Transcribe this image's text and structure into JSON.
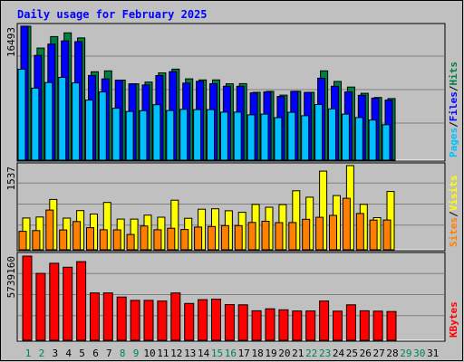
{
  "chart_data": [
    {
      "type": "bar",
      "panel": "hits-files-pages",
      "title": "Daily usage for February 2025",
      "ylabel_parts": [
        "Pages",
        "Files",
        "Hits"
      ],
      "ymax_label": "16493",
      "ylim": [
        0,
        16493
      ],
      "categories": [
        "1",
        "2",
        "3",
        "4",
        "5",
        "6",
        "7",
        "8",
        "9",
        "10",
        "11",
        "12",
        "13",
        "14",
        "15",
        "16",
        "17",
        "18",
        "19",
        "20",
        "21",
        "22",
        "23",
        "24",
        "25",
        "26",
        "27",
        "28"
      ],
      "series": [
        {
          "name": "Hits",
          "values": [
            16493,
            13805,
            15220,
            15685,
            15060,
            10888,
            11002,
            9860,
            9400,
            9620,
            10755,
            11215,
            10017,
            9880,
            9880,
            9405,
            9425,
            8355,
            8470,
            8010,
            8485,
            8355,
            11002,
            9700,
            9005,
            8240,
            7725,
            7590
          ]
        },
        {
          "name": "Files",
          "values": [
            16500,
            12900,
            14300,
            14690,
            14600,
            10430,
            10012,
            9860,
            9400,
            9260,
            10420,
            10912,
            9500,
            9722,
            9420,
            9100,
            9100,
            8290,
            8400,
            7850,
            8480,
            8350,
            10100,
            9110,
            8400,
            7990,
            7640,
            7402
          ]
        },
        {
          "name": "Pages",
          "values": [
            11200,
            8870,
            9560,
            10200,
            9520,
            7400,
            8400,
            6400,
            5995,
            6100,
            6835,
            6122,
            6260,
            6230,
            6230,
            5920,
            5920,
            5580,
            5670,
            5240,
            5900,
            5470,
            6850,
            6320,
            5670,
            5250,
            4950,
            4370
          ]
        }
      ],
      "colors": {
        "Hits": "#008040",
        "Files": "#0000ff",
        "Pages": "#00c0ff"
      }
    },
    {
      "type": "bar",
      "panel": "visits-sites",
      "ylabel_parts": [
        "Sites",
        "Visits"
      ],
      "ymax_label": "1537",
      "ylim": [
        0,
        1537
      ],
      "categories": [
        "1",
        "2",
        "3",
        "4",
        "5",
        "6",
        "7",
        "8",
        "9",
        "10",
        "11",
        "12",
        "13",
        "14",
        "15",
        "16",
        "17",
        "18",
        "19",
        "20",
        "21",
        "22",
        "23",
        "24",
        "25",
        "26",
        "27",
        "28"
      ],
      "series": [
        {
          "name": "Visits",
          "values": [
            580,
            598,
            919,
            579,
            716,
            652,
            865,
            560,
            560,
            633,
            595,
            905,
            575,
            740,
            748,
            713,
            684,
            828,
            777,
            824,
            1077,
            960,
            1437,
            990,
            1537,
            829,
            587,
            1065
          ]
        },
        {
          "name": "Sites",
          "values": [
            337,
            350,
            725,
            362,
            516,
            404,
            366,
            363,
            279,
            434,
            366,
            394,
            371,
            415,
            425,
            441,
            441,
            499,
            520,
            496,
            498,
            557,
            594,
            628,
            940,
            663,
            542,
            543
          ]
        }
      ],
      "colors": {
        "Visits": "#ffff00",
        "Sites": "#ff8000"
      }
    },
    {
      "type": "bar",
      "panel": "kbytes",
      "ylabel_parts": [
        "KBytes"
      ],
      "ymax_label": "5739160",
      "ylim": [
        0,
        5739160
      ],
      "categories": [
        "1",
        "2",
        "3",
        "4",
        "5",
        "6",
        "7",
        "8",
        "9",
        "10",
        "11",
        "12",
        "13",
        "14",
        "15",
        "16",
        "17",
        "18",
        "19",
        "20",
        "21",
        "22",
        "23",
        "24",
        "25",
        "26",
        "27",
        "28"
      ],
      "series": [
        {
          "name": "KBytes",
          "values": [
            5739160,
            4560000,
            5250000,
            4980000,
            5360000,
            3230000,
            3230000,
            2950000,
            2720000,
            2720000,
            2680000,
            3230000,
            2510000,
            2770000,
            2800000,
            2440000,
            2420000,
            2010000,
            2150000,
            2080000,
            2000000,
            2000000,
            2680000,
            1990000,
            2420000,
            2010000,
            1990000,
            1960000
          ]
        }
      ],
      "colors": {
        "KBytes": "#ff0000"
      }
    }
  ],
  "x_axis": {
    "day_labels": [
      "1",
      "2",
      "3",
      "4",
      "5",
      "6",
      "7",
      "8",
      "9",
      "10",
      "11",
      "12",
      "13",
      "14",
      "15",
      "16",
      "17",
      "18",
      "19",
      "20",
      "21",
      "22",
      "23",
      "24",
      "25",
      "26",
      "27",
      "28",
      "29",
      "30",
      "31"
    ],
    "weekend_days": [
      "1",
      "2",
      "8",
      "9",
      "15",
      "16",
      "22",
      "23",
      "29",
      "30"
    ],
    "weekday_color": "#000000",
    "weekend_color": "#00805c"
  }
}
